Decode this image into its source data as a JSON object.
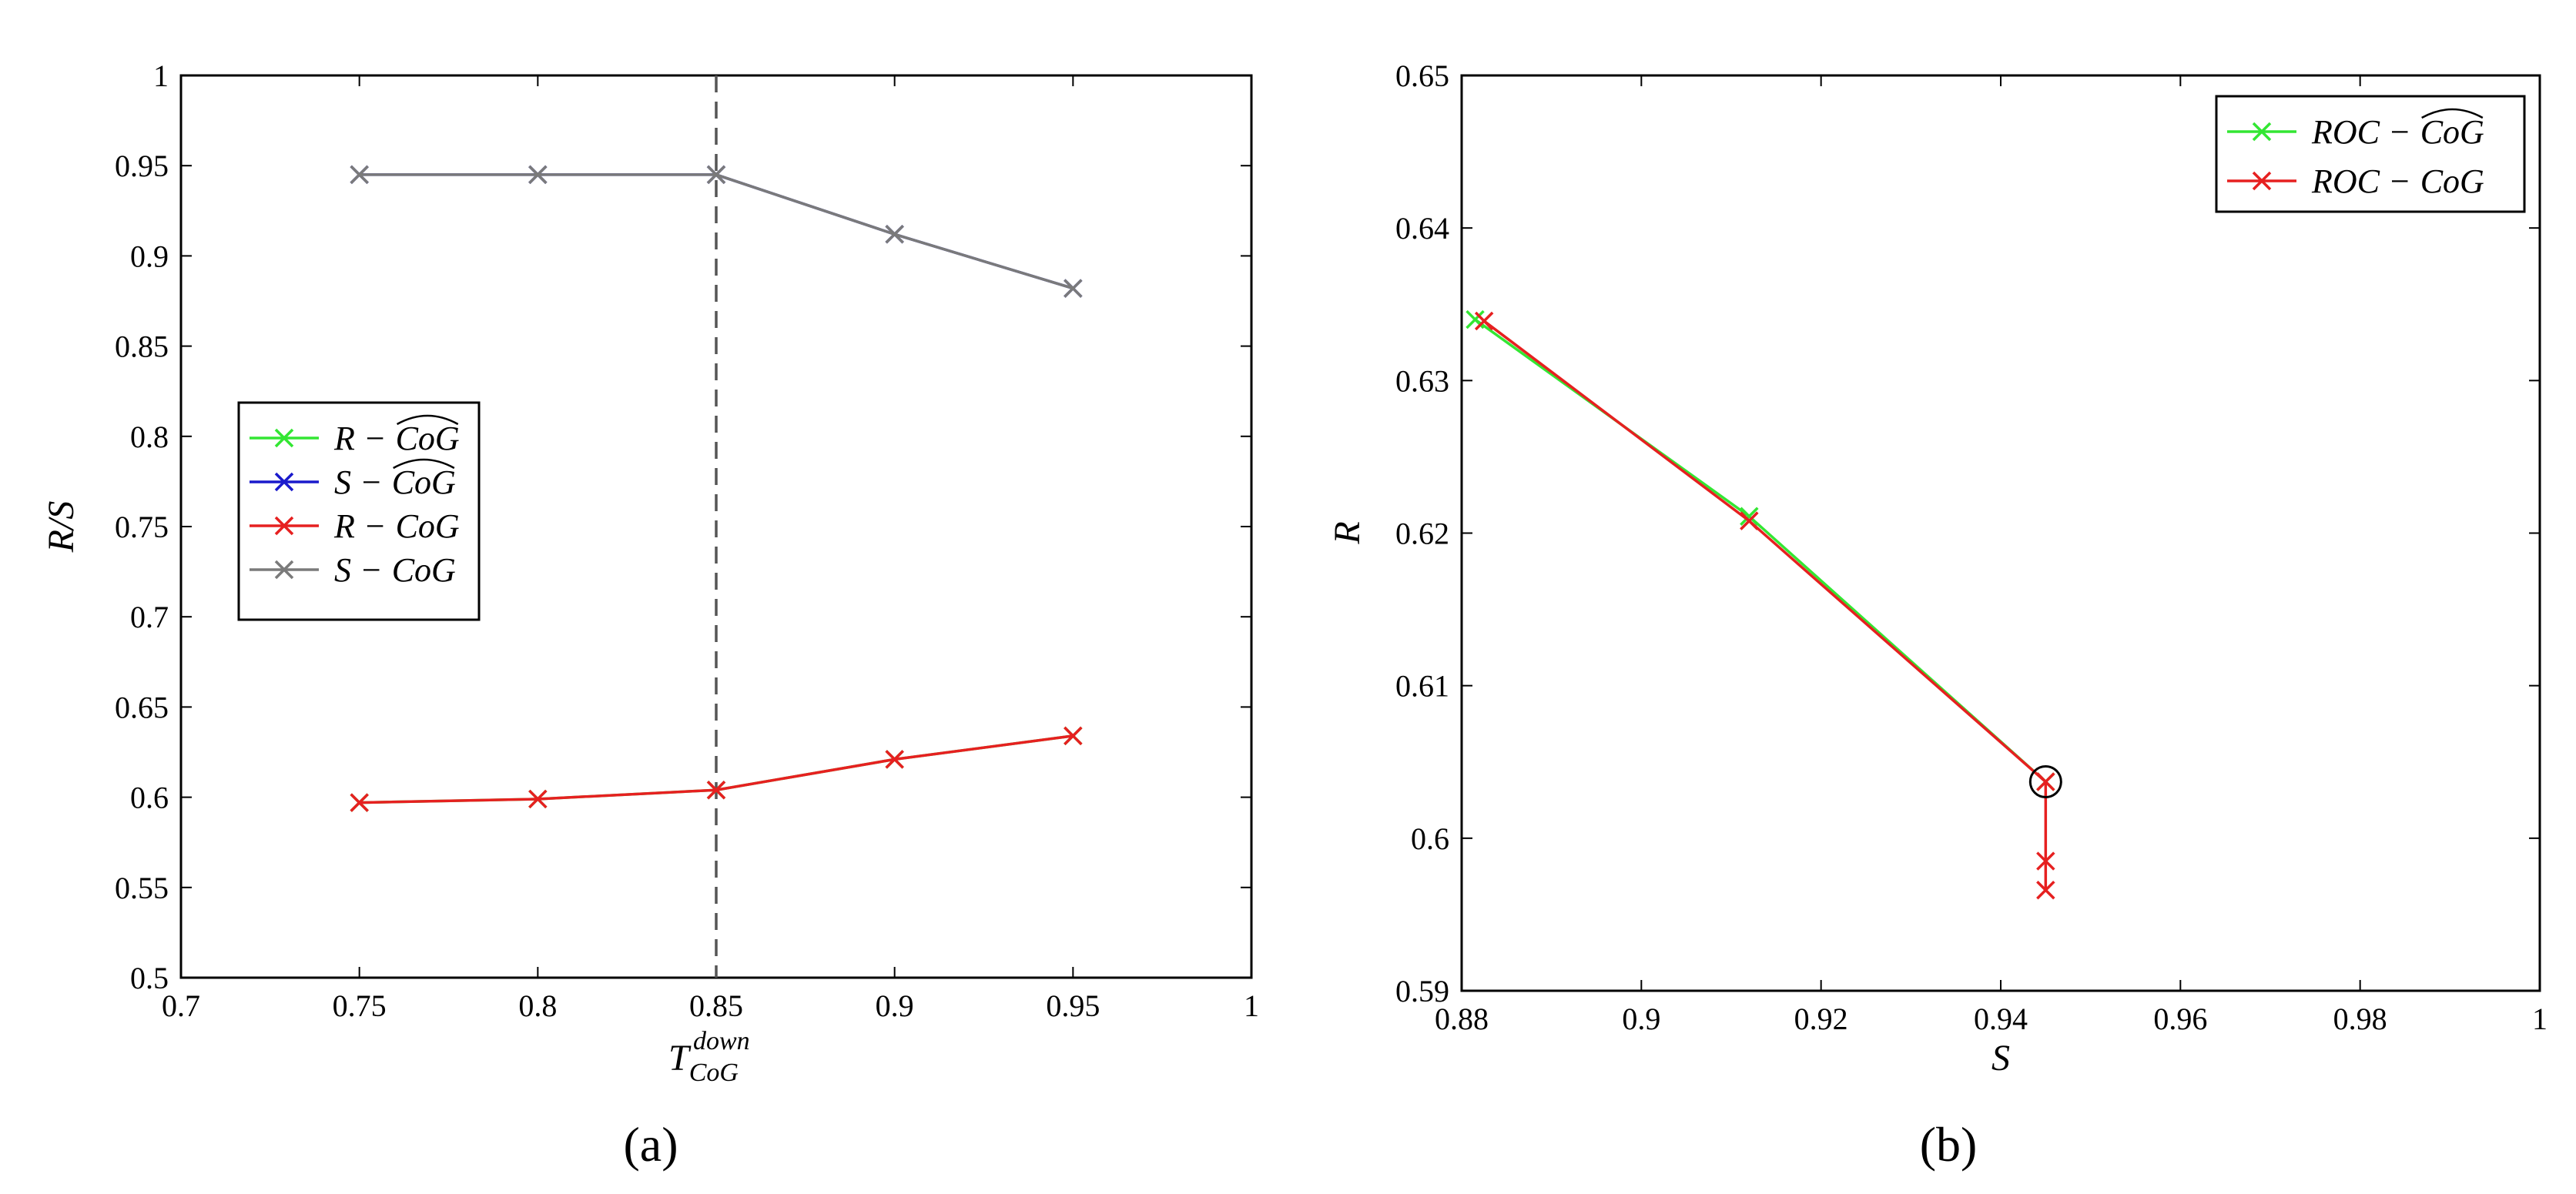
{
  "figure": {
    "panel_labels": [
      "(a)",
      "(b)"
    ]
  },
  "chart_data": [
    {
      "type": "line",
      "panel": "(a)",
      "title": "",
      "xlabel": "T_{CoG}^{down}",
      "xlabel_main": "T",
      "xlabel_sub": "CoG",
      "xlabel_sup": "down",
      "ylabel": "R/S",
      "xlim": [
        0.7,
        1.0
      ],
      "ylim": [
        0.5,
        1.0
      ],
      "xticks": [
        0.7,
        0.75,
        0.8,
        0.85,
        0.9,
        0.95,
        1.0
      ],
      "xtick_labels": [
        "0.7",
        "0.75",
        "0.8",
        "0.85",
        "0.9",
        "0.95",
        "1"
      ],
      "yticks": [
        0.5,
        0.55,
        0.6,
        0.65,
        0.7,
        0.75,
        0.8,
        0.85,
        0.9,
        0.95,
        1.0
      ],
      "ytick_labels": [
        "0.5",
        "0.55",
        "0.6",
        "0.65",
        "0.7",
        "0.75",
        "0.8",
        "0.85",
        "0.9",
        "0.95",
        "1"
      ],
      "grid": false,
      "legend_position": "middle-left",
      "vertical_line": {
        "x": 0.85,
        "style": "dashed",
        "color": "#555555"
      },
      "x": [
        0.75,
        0.8,
        0.85,
        0.9,
        0.95
      ],
      "series": [
        {
          "name": "R − \\widehat{CoG}",
          "label_left": "R −",
          "label_right": "CoG",
          "hat": true,
          "color": "#33e633",
          "marker": "x",
          "values": [
            0.597,
            0.599,
            0.604,
            0.621,
            0.634
          ]
        },
        {
          "name": "S − \\widehat{CoG}",
          "label_left": "S −",
          "label_right": "CoG",
          "hat": true,
          "color": "#1a1acc",
          "marker": "x",
          "values": [
            0.945,
            0.945,
            0.945,
            0.912,
            0.882
          ]
        },
        {
          "name": "R − CoG",
          "label_left": "R −",
          "label_right": "CoG",
          "hat": false,
          "color": "#e62020",
          "marker": "x",
          "values": [
            0.597,
            0.599,
            0.604,
            0.621,
            0.634
          ]
        },
        {
          "name": "S − CoG",
          "label_left": "S −",
          "label_right": "CoG",
          "hat": false,
          "color": "#7a7a7a",
          "marker": "x",
          "values": [
            0.945,
            0.945,
            0.945,
            0.912,
            0.882
          ]
        }
      ]
    },
    {
      "type": "line",
      "panel": "(b)",
      "title": "",
      "xlabel": "S",
      "ylabel": "R",
      "xlim": [
        0.88,
        1.0
      ],
      "ylim": [
        0.59,
        0.65
      ],
      "xticks": [
        0.88,
        0.9,
        0.92,
        0.94,
        0.96,
        0.98,
        1.0
      ],
      "xtick_labels": [
        "0.88",
        "0.9",
        "0.92",
        "0.94",
        "0.96",
        "0.98",
        "1"
      ],
      "yticks": [
        0.59,
        0.6,
        0.61,
        0.62,
        0.63,
        0.64,
        0.65
      ],
      "ytick_labels": [
        "0.59",
        "0.6",
        "0.61",
        "0.62",
        "0.63",
        "0.64",
        "0.65"
      ],
      "grid": false,
      "legend_position": "top-right",
      "highlight_point": {
        "x": 0.945,
        "y": 0.6037
      },
      "series": [
        {
          "name": "ROC − \\widehat{CoG}",
          "label_left": "ROC −",
          "label_right": "CoG",
          "hat": true,
          "color": "#33e633",
          "marker": "x",
          "points": [
            [
              0.8815,
              0.634
            ],
            [
              0.912,
              0.6211
            ],
            [
              0.945,
              0.6037
            ]
          ]
        },
        {
          "name": "ROC − CoG",
          "label_left": "ROC −",
          "label_right": "CoG",
          "hat": false,
          "color": "#e62020",
          "marker": "x",
          "points": [
            [
              0.8825,
              0.6339
            ],
            [
              0.912,
              0.6208
            ],
            [
              0.945,
              0.6037
            ],
            [
              0.945,
              0.5985
            ],
            [
              0.945,
              0.5966
            ]
          ]
        }
      ]
    }
  ]
}
